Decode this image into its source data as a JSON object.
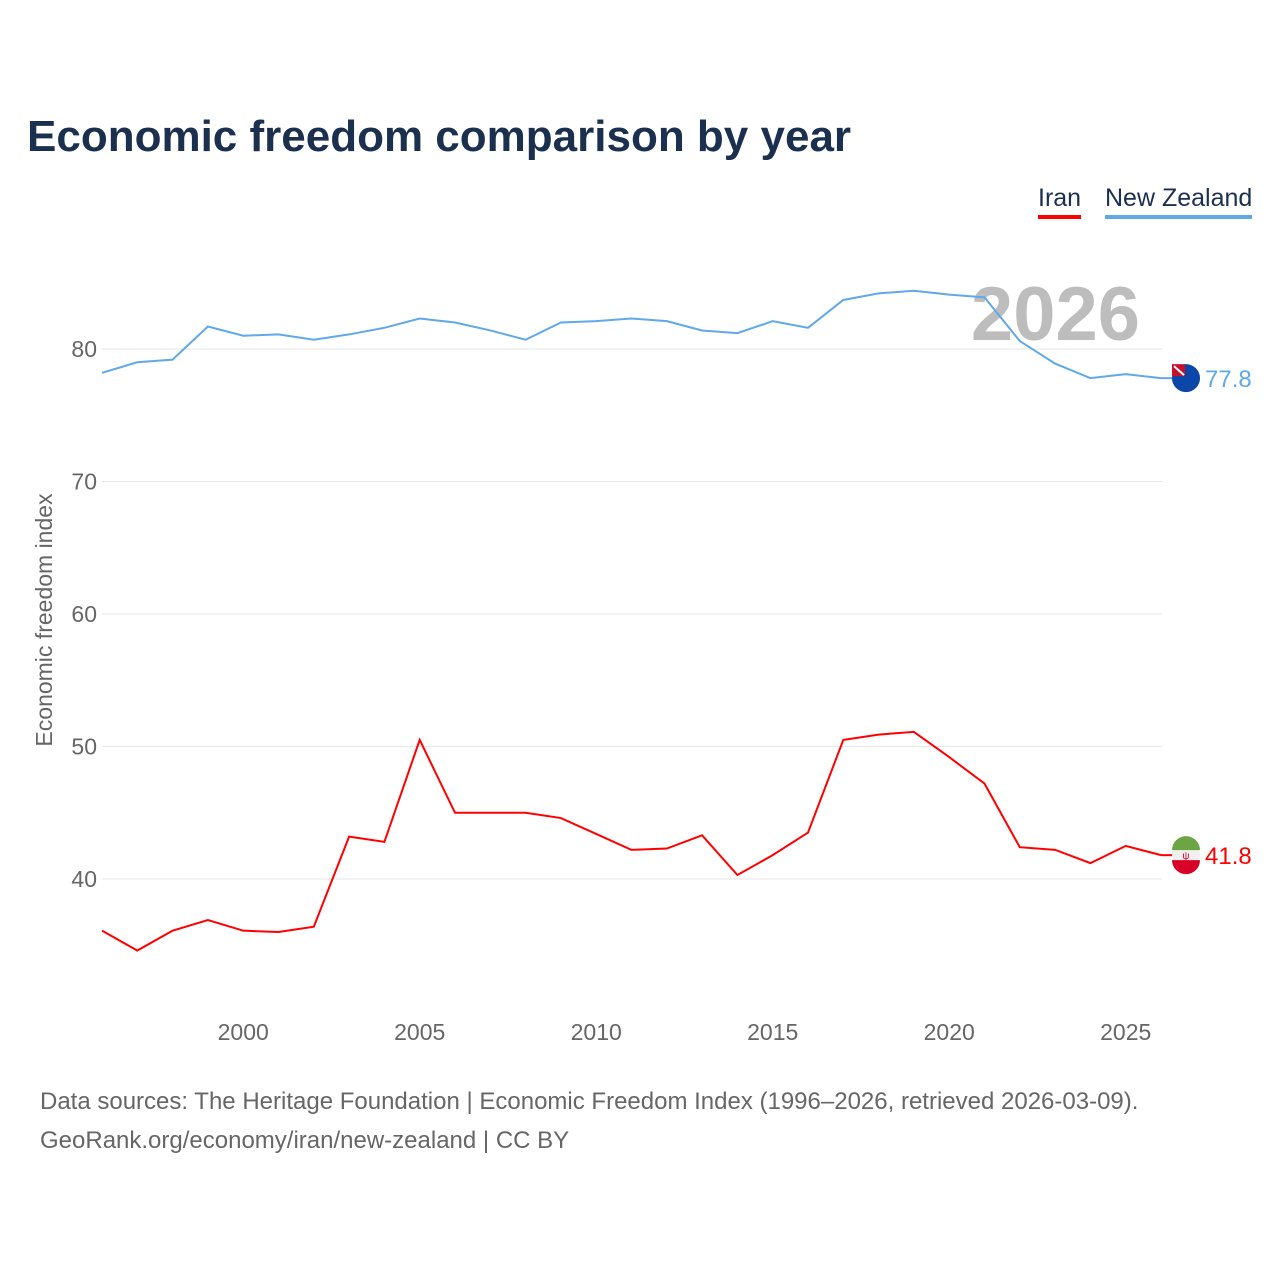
{
  "chart_data": {
    "type": "line",
    "title": "Economic freedom comparison by year",
    "xlabel": "",
    "ylabel": "Economic freedom index",
    "xlim": [
      1996,
      2026
    ],
    "ylim": [
      30,
      87
    ],
    "yticks": [
      40,
      50,
      60,
      70,
      80
    ],
    "xticks": [
      2000,
      2005,
      2010,
      2015,
      2020,
      2025
    ],
    "grid": true,
    "legend_position": "top-right",
    "year_watermark": "2026",
    "x": [
      1996,
      1997,
      1998,
      1999,
      2000,
      2001,
      2002,
      2003,
      2004,
      2005,
      2006,
      2007,
      2008,
      2009,
      2010,
      2011,
      2012,
      2013,
      2014,
      2015,
      2016,
      2017,
      2018,
      2019,
      2020,
      2021,
      2022,
      2023,
      2024,
      2025,
      2026
    ],
    "series": [
      {
        "name": "Iran",
        "color": "#ff0000",
        "end_label": "41.8",
        "values": [
          36.1,
          34.6,
          36.1,
          36.9,
          36.1,
          36.0,
          36.4,
          43.2,
          42.8,
          50.5,
          45.0,
          45.0,
          45.0,
          44.6,
          43.4,
          42.2,
          42.3,
          43.3,
          40.3,
          41.8,
          43.5,
          50.5,
          50.9,
          51.1,
          49.2,
          47.2,
          42.4,
          42.2,
          41.2,
          42.5,
          41.8
        ]
      },
      {
        "name": "New Zealand",
        "color": "#5fa8ea",
        "end_label": "77.8",
        "values": [
          78.2,
          79.0,
          79.2,
          81.7,
          81.0,
          81.1,
          80.7,
          81.1,
          81.6,
          82.3,
          82.0,
          81.4,
          80.7,
          82.0,
          82.1,
          82.3,
          82.1,
          81.4,
          81.2,
          82.1,
          81.6,
          83.7,
          84.2,
          84.4,
          84.1,
          83.9,
          80.6,
          78.9,
          77.8,
          78.1,
          77.8
        ]
      }
    ]
  },
  "footer": {
    "line1": "Data sources: The Heritage Foundation | Economic Freedom Index (1996–2026, retrieved 2026-03-09).",
    "line2": "GeoRank.org/economy/iran/new-zealand | CC BY"
  }
}
